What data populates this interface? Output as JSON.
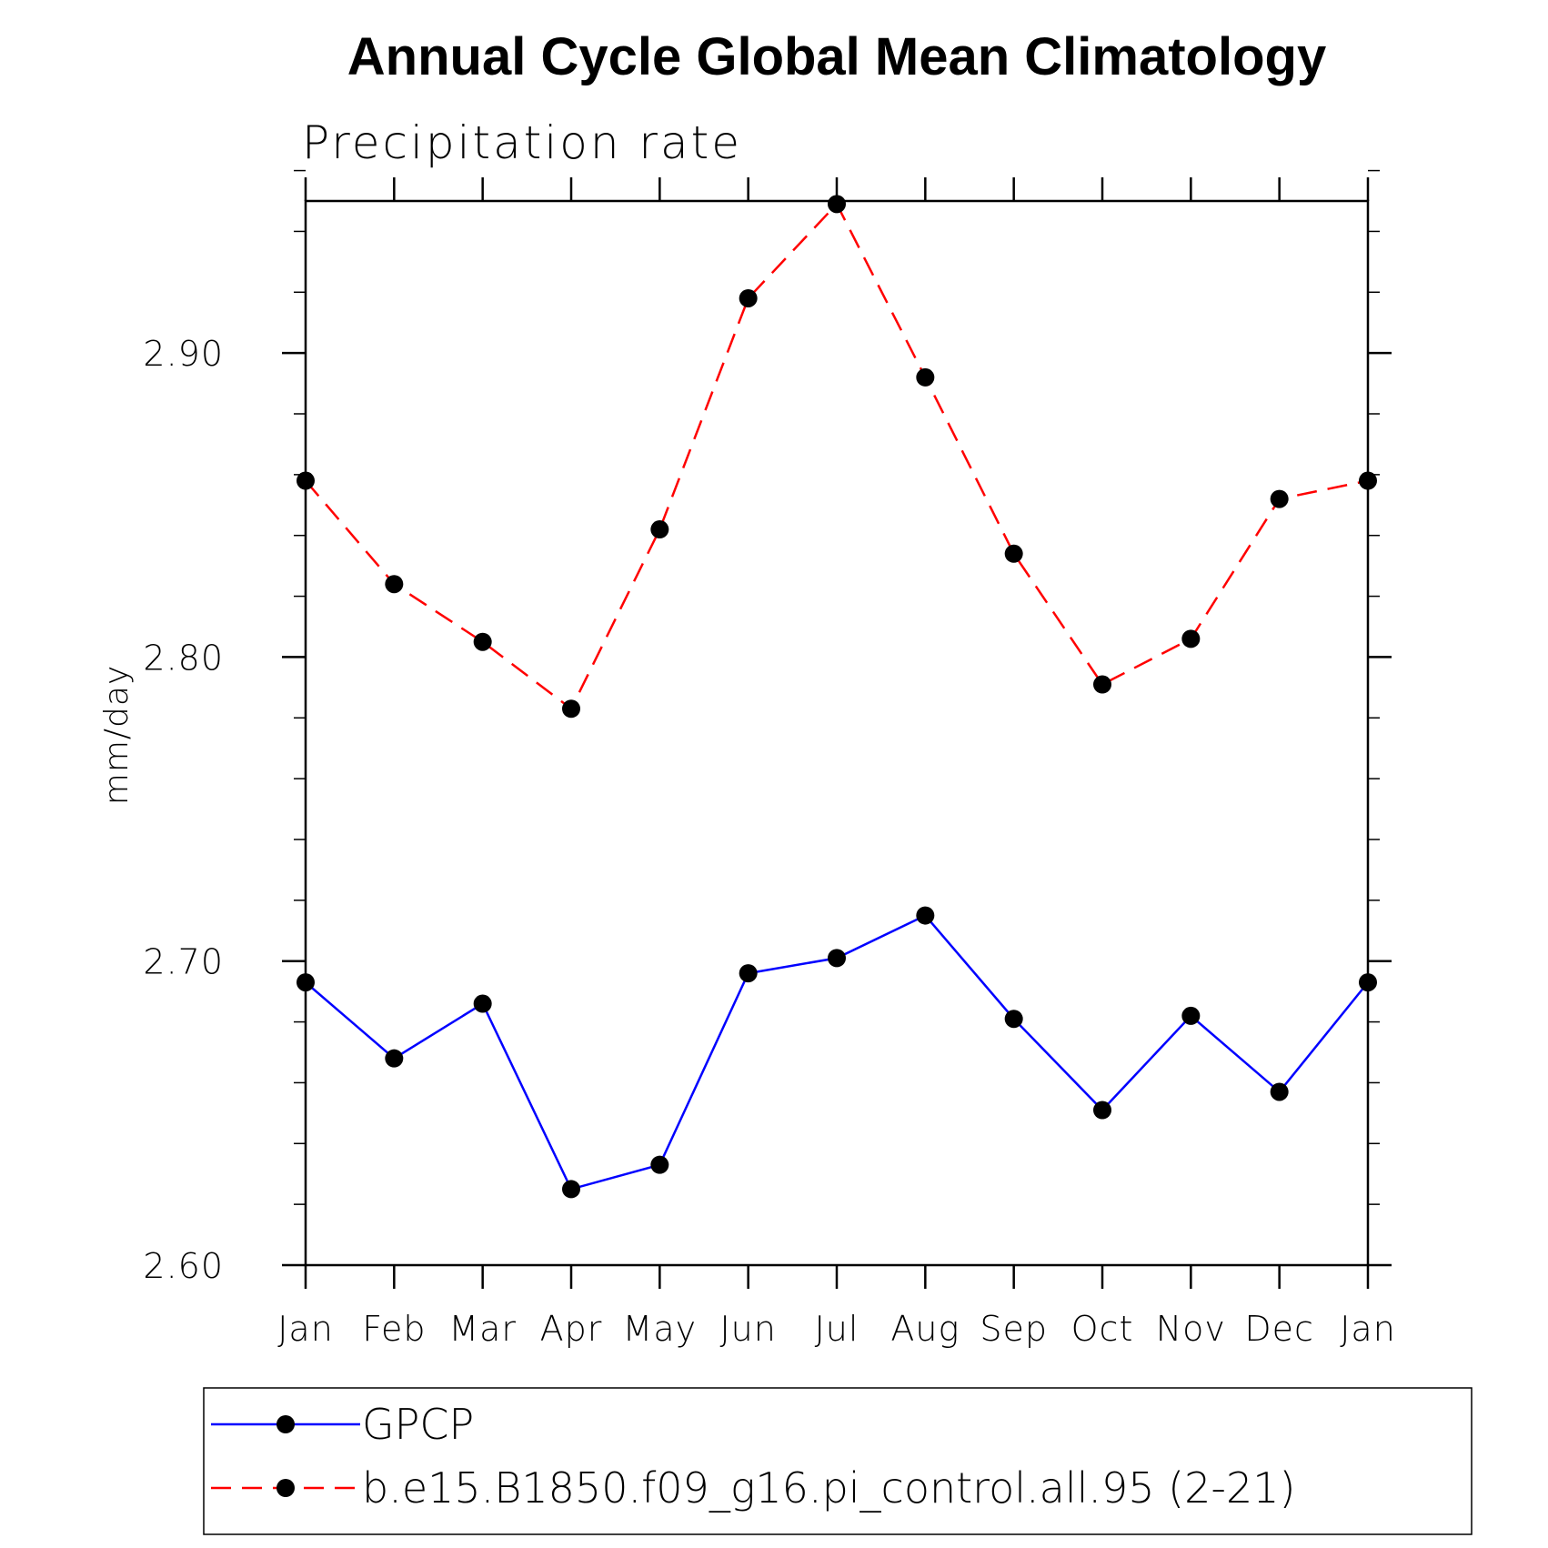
{
  "chart_data": {
    "type": "line",
    "title": "Annual Cycle Global Mean Climatology",
    "subtitle": "Precipitation rate",
    "ylabel": "mm/day",
    "xlabel": "",
    "ylim": [
      2.6,
      2.95
    ],
    "yticks": [
      "2.60",
      "2.70",
      "2.80",
      "2.90"
    ],
    "ytick_values": [
      2.6,
      2.7,
      2.8,
      2.9
    ],
    "y_minor_step": 0.02,
    "categories": [
      "Jan",
      "Feb",
      "Mar",
      "Apr",
      "May",
      "Jun",
      "Jul",
      "Aug",
      "Sep",
      "Oct",
      "Nov",
      "Dec",
      "Jan"
    ],
    "series": [
      {
        "name": "GPCP",
        "color": "#0000ff",
        "dash": "solid",
        "values": [
          2.693,
          2.668,
          2.686,
          2.625,
          2.633,
          2.696,
          2.701,
          2.715,
          2.681,
          2.651,
          2.682,
          2.657,
          2.693
        ]
      },
      {
        "name": "b.e15.B1850.f09_g16.pi_control.all.95 (2-21)",
        "color": "#ff0000",
        "dash": "dashed",
        "values": [
          2.858,
          2.824,
          2.805,
          2.783,
          2.842,
          2.918,
          2.949,
          2.892,
          2.834,
          2.791,
          2.806,
          2.852,
          2.858
        ]
      }
    ],
    "marker_color": "#000000",
    "legend_position": "bottom"
  }
}
